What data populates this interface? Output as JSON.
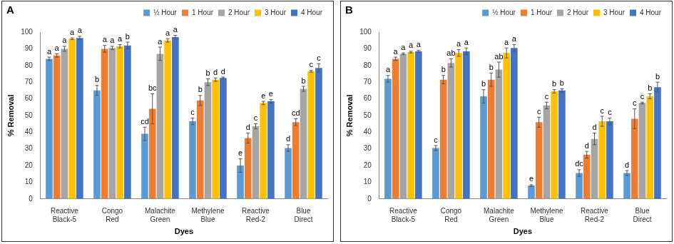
{
  "chart_data": [
    {
      "type": "bar",
      "title": "A",
      "x_label": "Dyes",
      "y_label": "% Removal",
      "categories": [
        "Reactive Black-5",
        "Congo Red",
        "Malachite Green",
        "Methylene Blue",
        "Reactive Red-2",
        "Blue Direct"
      ],
      "ylim": [
        0,
        100
      ],
      "yticks": [
        0,
        10,
        20,
        30,
        40,
        50,
        60,
        70,
        80,
        90,
        100
      ],
      "grid": false,
      "legend": "top-right",
      "series": [
        {
          "name": "½ Hour",
          "color": "#5b9bd5",
          "values": [
            84,
            65,
            39,
            46.5,
            20,
            30.5
          ],
          "errors": [
            1,
            3,
            4,
            2,
            4,
            2
          ],
          "letters": [
            "a",
            "b",
            "cd",
            "c",
            "e",
            "d"
          ]
        },
        {
          "name": "1 Hour",
          "color": "#ed7d31",
          "values": [
            86,
            90,
            54,
            59,
            36.5,
            46
          ],
          "errors": [
            1,
            2,
            9,
            3,
            3,
            2
          ],
          "letters": [
            "a",
            "a",
            "bc",
            "b",
            "d",
            "cd"
          ]
        },
        {
          "name": "2 Hour",
          "color": "#a5a5a5",
          "values": [
            90,
            90.5,
            87,
            70,
            43.5,
            66
          ],
          "errors": [
            1.5,
            1,
            4,
            2,
            1.5,
            1.5
          ],
          "letters": [
            "a",
            "a",
            "a",
            "b",
            "c",
            "b"
          ]
        },
        {
          "name": "3 Hour",
          "color": "#ffc000",
          "values": [
            96,
            91.5,
            95,
            71.5,
            57.5,
            76.5
          ],
          "errors": [
            0.5,
            1,
            1,
            1,
            1,
            0.5
          ],
          "letters": [
            "a",
            "a",
            "a",
            "d",
            "e",
            "c"
          ]
        },
        {
          "name": "4 Hour",
          "color": "#4472c4",
          "values": [
            96.5,
            92,
            97,
            72.5,
            58.5,
            78.5
          ],
          "errors": [
            1,
            2,
            1,
            0.5,
            1,
            2.5
          ],
          "letters": [
            "a",
            "b",
            "a",
            "d",
            "e",
            "c"
          ]
        }
      ]
    },
    {
      "type": "bar",
      "title": "B",
      "x_label": "Dyes",
      "y_label": "% Removal",
      "categories": [
        "Reactive Black-5",
        "Congo Red",
        "Malachite Green",
        "Methylene Blue",
        "Reactive Red-2",
        "Blue Direct"
      ],
      "ylim": [
        0,
        100
      ],
      "yticks": [
        0,
        10,
        20,
        30,
        40,
        50,
        60,
        70,
        80,
        90,
        100
      ],
      "grid": false,
      "legend": "top-right",
      "series": [
        {
          "name": "½ Hour",
          "color": "#5b9bd5",
          "values": [
            72,
            30.5,
            61.5,
            8,
            15.5,
            15.5
          ],
          "errors": [
            2,
            1.5,
            4,
            0.5,
            2,
            1.5
          ],
          "letters": [
            "a",
            "c",
            "b",
            "e",
            "dc",
            "d"
          ]
        },
        {
          "name": "1 Hour",
          "color": "#ed7d31",
          "values": [
            84,
            71.5,
            71.5,
            46,
            26.5,
            48
          ],
          "errors": [
            1,
            2.5,
            4,
            3,
            2,
            6
          ],
          "letters": [
            "a",
            "b",
            "b",
            "c",
            "d",
            "c"
          ]
        },
        {
          "name": "2 Hour",
          "color": "#a5a5a5",
          "values": [
            87,
            81.5,
            77.5,
            56,
            36,
            57.5
          ],
          "errors": [
            0.5,
            2.5,
            4.5,
            2,
            3.5,
            0.5
          ],
          "letters": [
            "a",
            "ab",
            "ab",
            "c",
            "d",
            "c"
          ]
        },
        {
          "name": "3 Hour",
          "color": "#ffc000",
          "values": [
            88,
            87.5,
            87.5,
            64.5,
            46.5,
            61.5
          ],
          "errors": [
            0.5,
            2,
            3,
            1,
            3,
            1.5
          ],
          "letters": [
            "a",
            "a",
            "a",
            "b",
            "c",
            "b"
          ]
        },
        {
          "name": "4 Hour",
          "color": "#4472c4",
          "values": [
            88.5,
            88.5,
            90.5,
            65,
            46.5,
            67
          ],
          "errors": [
            0.5,
            2,
            2,
            1,
            2,
            3
          ],
          "letters": [
            "a",
            "a",
            "a",
            "b",
            "c",
            "b"
          ]
        }
      ]
    }
  ]
}
